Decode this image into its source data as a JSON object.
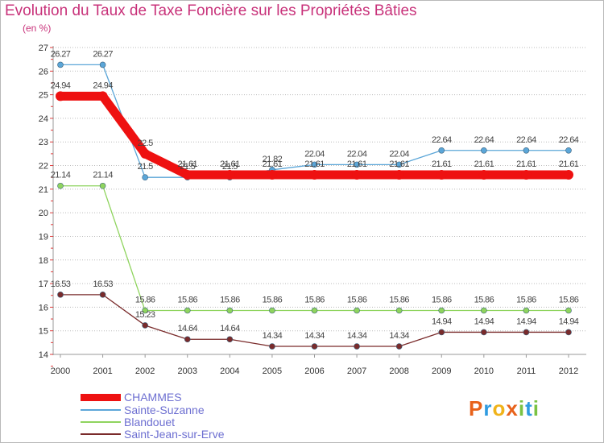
{
  "header": {
    "title": "Evolution du Taux de Taxe Foncière sur les Propriétés Bâties",
    "unit": "(en %)"
  },
  "logo": {
    "text": "Proxiti",
    "colors": [
      "#e8621a",
      "#2f9be0",
      "#f0b31a",
      "#e8621a",
      "#7ac243",
      "#2f9be0",
      "#7ac243"
    ]
  },
  "chart_data": {
    "type": "line",
    "title": "Evolution du Taux de Taxe Foncière sur les Propriétés Bâties",
    "ylabel": "(en %)",
    "xlabel": "",
    "ylim": [
      14,
      27
    ],
    "yticks": [
      14,
      15,
      16,
      17,
      18,
      19,
      20,
      21,
      22,
      23,
      24,
      25,
      26,
      27
    ],
    "categories": [
      "2000",
      "2001",
      "2002",
      "2003",
      "2004",
      "2005",
      "2006",
      "2007",
      "2008",
      "2009",
      "2010",
      "2011",
      "2012"
    ],
    "legend_position": "bottom-left",
    "series": [
      {
        "name": "CHAMMES",
        "color": "#ee1111",
        "style": "thick",
        "values": [
          24.94,
          24.94,
          22.5,
          21.61,
          21.61,
          21.61,
          21.61,
          21.61,
          21.61,
          21.61,
          21.61,
          21.61,
          21.61
        ],
        "labels": [
          "24.94",
          "24.94",
          "22.5",
          "21.61",
          "21.61",
          "21.61",
          "21.61",
          "21.61",
          "21.61",
          "21.61",
          "21.61",
          "21.61",
          "21.61"
        ]
      },
      {
        "name": "Sainte-Suzanne",
        "color": "#5ba6d8",
        "style": "thin",
        "values": [
          26.27,
          26.27,
          21.5,
          21.5,
          21.5,
          21.82,
          22.04,
          22.04,
          22.04,
          22.64,
          22.64,
          22.64,
          22.64
        ],
        "labels": [
          "26.27",
          "26.27",
          "21.5",
          "21.5",
          "21.5",
          "21.82",
          "22.04",
          "22.04",
          "22.04",
          "22.64",
          "22.64",
          "22.64",
          "22.64"
        ]
      },
      {
        "name": "Blandouet",
        "color": "#8fd45e",
        "style": "thin",
        "values": [
          21.14,
          21.14,
          15.86,
          15.86,
          15.86,
          15.86,
          15.86,
          15.86,
          15.86,
          15.86,
          15.86,
          15.86,
          15.86
        ],
        "labels": [
          "21.14",
          "21.14",
          "15.86",
          "15.86",
          "15.86",
          "15.86",
          "15.86",
          "15.86",
          "15.86",
          "15.86",
          "15.86",
          "15.86",
          "15.86"
        ]
      },
      {
        "name": "Saint-Jean-sur-Erve",
        "color": "#7a2b2b",
        "style": "thin",
        "values": [
          16.53,
          16.53,
          15.23,
          14.64,
          14.64,
          14.34,
          14.34,
          14.34,
          14.34,
          14.94,
          14.94,
          14.94,
          14.94
        ],
        "labels": [
          "16.53",
          "16.53",
          "15.23",
          "14.64",
          "14.64",
          "14.34",
          "14.34",
          "14.34",
          "14.34",
          "14.94",
          "14.94",
          "14.94",
          "14.94"
        ]
      }
    ]
  }
}
